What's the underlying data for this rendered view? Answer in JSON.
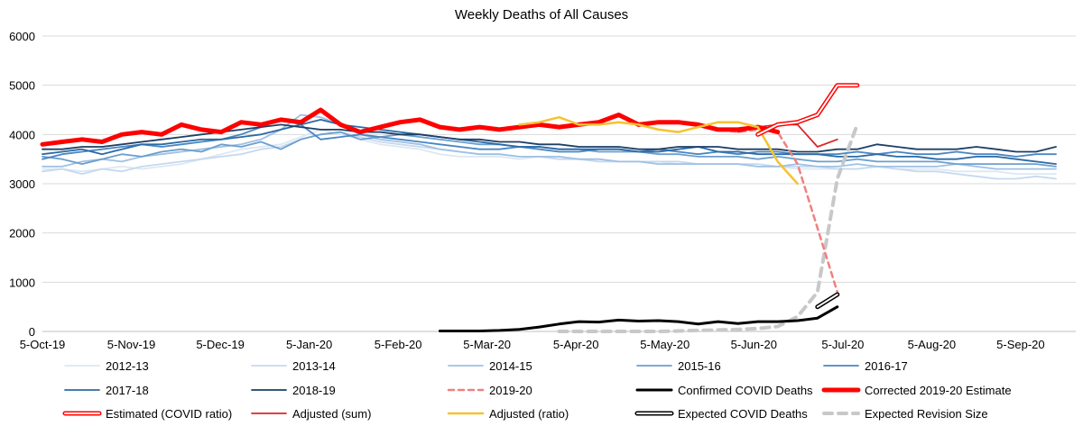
{
  "chart_data": {
    "type": "line",
    "title": "Weekly Deaths of All Causes",
    "xlabel": "",
    "ylabel": "",
    "ylim": [
      0,
      6000
    ],
    "yticks": [
      0,
      1000,
      2000,
      3000,
      4000,
      5000,
      6000
    ],
    "x_tick_labels": [
      "5-Oct-19",
      "5-Nov-19",
      "5-Dec-19",
      "5-Jan-20",
      "5-Feb-20",
      "5-Mar-20",
      "5-Apr-20",
      "5-May-20",
      "5-Jun-20",
      "5-Jul-20",
      "5-Aug-20",
      "5-Sep-20"
    ],
    "grid": "horizontal",
    "legend_position": "bottom",
    "series": [
      {
        "name": "2012-13",
        "color": "#dce8f4",
        "style": "solid",
        "start": 0,
        "values": [
          3300,
          3300,
          3250,
          3300,
          3350,
          3300,
          3350,
          3400,
          3500,
          3600,
          3700,
          3750,
          3800,
          3950,
          4100,
          4000,
          3900,
          3800,
          3750,
          3700,
          3600,
          3550,
          3550,
          3550,
          3500,
          3550,
          3500,
          3500,
          3450,
          3450,
          3450,
          3450,
          3400,
          3400,
          3400,
          3400,
          3350,
          3350,
          3300,
          3300,
          3300,
          3300,
          3350,
          3300,
          3300,
          3300,
          3250,
          3250,
          3250,
          3200,
          3200,
          3200
        ]
      },
      {
        "name": "2013-14",
        "color": "#c6d9ee",
        "style": "solid",
        "start": 0,
        "values": [
          3250,
          3300,
          3200,
          3300,
          3250,
          3350,
          3400,
          3450,
          3500,
          3550,
          3600,
          3700,
          3750,
          3900,
          4000,
          4050,
          3950,
          3850,
          3800,
          3750,
          3700,
          3650,
          3600,
          3600,
          3550,
          3550,
          3500,
          3500,
          3450,
          3450,
          3450,
          3450,
          3450,
          3400,
          3400,
          3400,
          3400,
          3350,
          3350,
          3350,
          3300,
          3300,
          3350,
          3300,
          3250,
          3250,
          3200,
          3150,
          3100,
          3100,
          3150,
          3100
        ]
      },
      {
        "name": "2014-15",
        "color": "#9fc1e3",
        "style": "solid",
        "start": 0,
        "values": [
          3350,
          3350,
          3450,
          3500,
          3450,
          3550,
          3600,
          3650,
          3700,
          3750,
          3800,
          3900,
          4100,
          4400,
          4350,
          4200,
          4000,
          3900,
          3850,
          3800,
          3700,
          3650,
          3600,
          3600,
          3550,
          3550,
          3550,
          3500,
          3500,
          3450,
          3450,
          3400,
          3400,
          3400,
          3400,
          3400,
          3350,
          3350,
          3400,
          3350,
          3350,
          3400,
          3350,
          3350,
          3350,
          3350,
          3400,
          3350,
          3300,
          3300,
          3300,
          3300
        ]
      },
      {
        "name": "2015-16",
        "color": "#6d9fce",
        "style": "solid",
        "start": 0,
        "values": [
          3550,
          3500,
          3400,
          3500,
          3600,
          3550,
          3650,
          3700,
          3650,
          3800,
          3750,
          3850,
          3700,
          3900,
          4000,
          4050,
          3900,
          3950,
          4000,
          3950,
          3900,
          3850,
          3800,
          3800,
          3750,
          3750,
          3700,
          3700,
          3650,
          3650,
          3650,
          3600,
          3600,
          3550,
          3550,
          3550,
          3500,
          3550,
          3500,
          3450,
          3450,
          3500,
          3450,
          3450,
          3450,
          3450,
          3400,
          3400,
          3400,
          3400,
          3400,
          3350
        ]
      },
      {
        "name": "2016-17",
        "color": "#4a86c2",
        "style": "solid",
        "start": 0,
        "values": [
          3500,
          3600,
          3650,
          3700,
          3750,
          3800,
          3750,
          3800,
          3850,
          3900,
          4000,
          4150,
          4300,
          4200,
          3900,
          3950,
          4000,
          3950,
          3900,
          3850,
          3800,
          3750,
          3700,
          3700,
          3750,
          3700,
          3650,
          3650,
          3700,
          3700,
          3650,
          3700,
          3650,
          3600,
          3650,
          3600,
          3650,
          3650,
          3600,
          3600,
          3600,
          3650,
          3600,
          3650,
          3600,
          3600,
          3650,
          3600,
          3600,
          3550,
          3600,
          3600
        ]
      },
      {
        "name": "2017-18",
        "color": "#2b6aa6",
        "style": "solid",
        "start": 0,
        "values": [
          3600,
          3650,
          3700,
          3600,
          3700,
          3800,
          3800,
          3850,
          3900,
          3900,
          3950,
          4000,
          4100,
          4200,
          4300,
          4200,
          4150,
          4100,
          4050,
          4000,
          3950,
          3900,
          3850,
          3800,
          3750,
          3750,
          3700,
          3700,
          3700,
          3700,
          3650,
          3650,
          3700,
          3750,
          3650,
          3650,
          3600,
          3600,
          3600,
          3600,
          3550,
          3550,
          3600,
          3550,
          3550,
          3500,
          3500,
          3550,
          3550,
          3500,
          3450,
          3400
        ]
      },
      {
        "name": "2018-19",
        "color": "#1d3f66",
        "style": "solid",
        "start": 0,
        "values": [
          3700,
          3700,
          3750,
          3750,
          3800,
          3850,
          3900,
          3950,
          4000,
          4050,
          4100,
          4150,
          4200,
          4150,
          4100,
          4100,
          4050,
          4050,
          4000,
          4000,
          3950,
          3900,
          3900,
          3850,
          3850,
          3800,
          3800,
          3750,
          3750,
          3750,
          3700,
          3700,
          3750,
          3750,
          3750,
          3700,
          3700,
          3700,
          3650,
          3650,
          3700,
          3700,
          3800,
          3750,
          3700,
          3700,
          3700,
          3750,
          3700,
          3650,
          3650,
          3750
        ]
      },
      {
        "name": "2019-20",
        "color": "#f08080",
        "style": "dashed",
        "start": 0,
        "values": [
          3800,
          3850,
          3900,
          3850,
          4000,
          4050,
          4000,
          4200,
          4100,
          4050,
          4250,
          4200,
          4300,
          4250,
          4500,
          4200,
          4050,
          4150,
          4250,
          4300,
          4150,
          4100,
          4150,
          4100,
          4150,
          4200,
          4150,
          4200,
          4250,
          4400,
          4200,
          4250,
          4250,
          4200,
          4100,
          4050,
          4100,
          4050,
          3400,
          2100,
          800
        ]
      },
      {
        "name": "Confirmed COVID Deaths",
        "color": "#000000",
        "style": "solid",
        "start": 20,
        "values": [
          10,
          10,
          10,
          20,
          40,
          90,
          150,
          200,
          190,
          230,
          210,
          220,
          200,
          150,
          200,
          160,
          200,
          200,
          220,
          270,
          500
        ]
      },
      {
        "name": "Corrected 2019-20 Estimate",
        "color": "#ff0000",
        "style": "thick",
        "start": 0,
        "values": [
          3800,
          3850,
          3900,
          3850,
          4000,
          4050,
          4000,
          4200,
          4100,
          4050,
          4250,
          4200,
          4300,
          4250,
          4500,
          4200,
          4050,
          4150,
          4250,
          4300,
          4150,
          4100,
          4150,
          4100,
          4150,
          4200,
          4150,
          4200,
          4250,
          4400,
          4200,
          4250,
          4250,
          4200,
          4100,
          4100,
          4150,
          4050
        ]
      },
      {
        "name": "Estimated (COVID ratio)",
        "color": "#ff0000",
        "style": "outline",
        "start": 36,
        "values": [
          4000,
          4200,
          4250,
          4400,
          5000,
          5000
        ]
      },
      {
        "name": "Adjusted (sum)",
        "color": "#d9262c",
        "style": "solid",
        "start": 35,
        "values": [
          4050,
          4150,
          4200,
          4200,
          3750,
          3900
        ]
      },
      {
        "name": "Adjusted (ratio)",
        "color": "#f5c330",
        "style": "solid",
        "start": 24,
        "values": [
          4200,
          4250,
          4350,
          4200,
          4200,
          4250,
          4200,
          4100,
          4050,
          4150,
          4250,
          4250,
          4150,
          3450,
          3000
        ]
      },
      {
        "name": "Expected COVID Deaths",
        "color": "#000000",
        "style": "outline",
        "start": 39,
        "values": [
          500,
          750
        ]
      },
      {
        "name": "Expected Revision Size",
        "color": "#c8c8c8",
        "style": "dashed-thick",
        "start": 26,
        "values": [
          0,
          0,
          0,
          0,
          0,
          0,
          10,
          20,
          30,
          40,
          60,
          100,
          300,
          800,
          3100,
          4200
        ]
      }
    ]
  }
}
